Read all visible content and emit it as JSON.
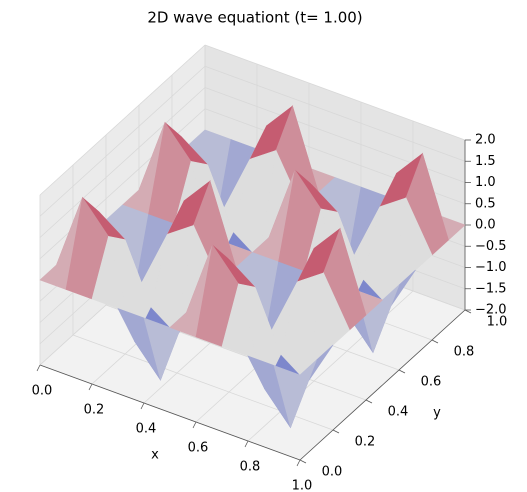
{
  "chart_data": {
    "type": "surface",
    "title": "2D wave equationt (t= 1.00)",
    "x_label": "x",
    "y_label": "y",
    "colormap_colors": [
      "#3b4cc0",
      "#dddddd",
      "#b40426"
    ],
    "x": [
      0,
      0.1,
      0.2,
      0.3,
      0.4,
      0.5,
      0.6,
      0.7,
      0.8,
      0.9,
      1
    ],
    "y": [
      0,
      0.1,
      0.2,
      0.3,
      0.4,
      0.5,
      0.6,
      0.7,
      0.8,
      0.9,
      1
    ],
    "z": [
      [
        0,
        0,
        0,
        0,
        0,
        0,
        0,
        0,
        0,
        0,
        0
      ],
      [
        0,
        1.81,
        1.12,
        -1.12,
        -1.81,
        0,
        1.81,
        1.12,
        -1.12,
        -1.81,
        0
      ],
      [
        0,
        1.12,
        0.69,
        -0.69,
        -1.12,
        0,
        1.12,
        0.69,
        -0.69,
        -1.12,
        0
      ],
      [
        0,
        -1.12,
        -0.69,
        0.69,
        1.12,
        0,
        -1.12,
        -0.69,
        0.69,
        1.12,
        0
      ],
      [
        0,
        -1.81,
        -1.12,
        1.12,
        1.81,
        0,
        -1.81,
        -1.12,
        1.12,
        1.81,
        0
      ],
      [
        0,
        0,
        0,
        0,
        0,
        0,
        0,
        0,
        0,
        0,
        0
      ],
      [
        0,
        1.81,
        1.12,
        -1.12,
        -1.81,
        0,
        1.81,
        1.12,
        -1.12,
        -1.81,
        0
      ],
      [
        0,
        1.12,
        0.69,
        -0.69,
        -1.12,
        0,
        1.12,
        0.69,
        -0.69,
        -1.12,
        0
      ],
      [
        0,
        -1.12,
        -0.69,
        0.69,
        1.12,
        0,
        -1.12,
        -0.69,
        0.69,
        1.12,
        0
      ],
      [
        0,
        -1.81,
        -1.12,
        1.12,
        1.81,
        0,
        -1.81,
        -1.12,
        1.12,
        1.81,
        0
      ],
      [
        0,
        0,
        0,
        0,
        0,
        0,
        0,
        0,
        0,
        0,
        0
      ]
    ],
    "xlim": [
      0,
      1
    ],
    "ylim": [
      0,
      1
    ],
    "zlim": [
      -2,
      2
    ],
    "xticks": [
      {
        "value": 0,
        "label": "0.0"
      },
      {
        "value": 0.2,
        "label": "0.2"
      },
      {
        "value": 0.4,
        "label": "0.4"
      },
      {
        "value": 0.6,
        "label": "0.6"
      },
      {
        "value": 0.8,
        "label": "0.8"
      },
      {
        "value": 1,
        "label": "1.0"
      }
    ],
    "yticks": [
      {
        "value": 0,
        "label": "0.0"
      },
      {
        "value": 0.2,
        "label": "0.2"
      },
      {
        "value": 0.4,
        "label": "0.4"
      },
      {
        "value": 0.6,
        "label": "0.6"
      },
      {
        "value": 0.8,
        "label": "0.8"
      },
      {
        "value": 1,
        "label": "1.0"
      }
    ],
    "zticks": [
      {
        "value": 2,
        "label": "2.0"
      },
      {
        "value": 1.5,
        "label": "1.5"
      },
      {
        "value": 1,
        "label": "1.0"
      },
      {
        "value": 0.5,
        "label": "0.5"
      },
      {
        "value": 0,
        "label": "0.0"
      },
      {
        "value": -0.5,
        "label": "−0.5"
      },
      {
        "value": -1,
        "label": "−1.0"
      },
      {
        "value": -1.5,
        "label": "−1.5"
      },
      {
        "value": -2,
        "label": "−2.0"
      }
    ],
    "grid": true
  }
}
